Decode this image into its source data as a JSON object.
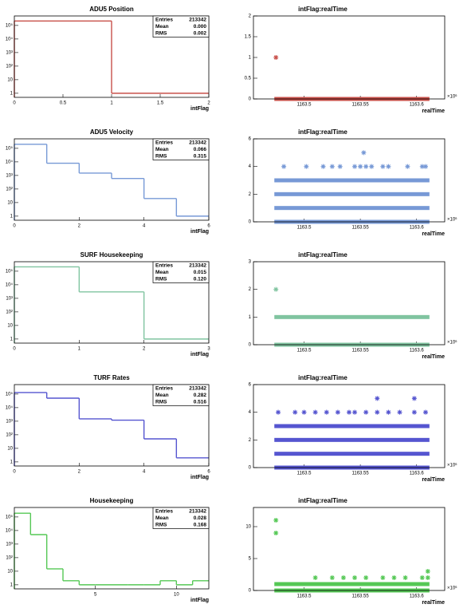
{
  "chart_data": [
    {
      "type": "histogram",
      "title": "ADU5 Position",
      "xlabel": "intFlag",
      "color": "#c8504a",
      "log_y": true,
      "bins": [
        0,
        1,
        2
      ],
      "values": [
        213341,
        1
      ],
      "xlim": [
        0,
        2
      ],
      "xticks": [
        0,
        0.5,
        1,
        1.5,
        2
      ],
      "ylim": [
        0.5,
        500000
      ],
      "yticks": [
        1,
        10,
        {
          "value": 100,
          "label": "10²"
        },
        {
          "value": 1000,
          "label": "10³"
        },
        {
          "value": 10000,
          "label": "10⁴"
        },
        {
          "value": 100000,
          "label": "10⁵"
        }
      ],
      "stats": [
        {
          "name": "Entries",
          "value": "213342"
        },
        {
          "name": "Mean",
          "value": "0.000"
        },
        {
          "name": "RMS",
          "value": "0.002"
        }
      ]
    },
    {
      "type": "scatter",
      "title": "intFlag:realTime",
      "xlabel": "realTime",
      "x_exponent": "×10⁶",
      "color": "#c8504a",
      "xlim": [
        1163.455,
        1163.625
      ],
      "xticks": [
        {
          "value": 1163.5,
          "label": "1163.5"
        },
        {
          "value": 1163.55,
          "label": "1163.55"
        },
        {
          "value": 1163.6,
          "label": "1163.6"
        }
      ],
      "ylim": [
        0,
        2
      ],
      "yticks": [
        0,
        0.5,
        1,
        1.5,
        2
      ],
      "bands": [
        {
          "y": 0,
          "x": [
            1163.475,
            1163.61
          ]
        }
      ],
      "x": [
        1163.475
      ],
      "y": [
        1
      ]
    },
    {
      "type": "histogram",
      "title": "ADU5 Velocity",
      "xlabel": "intFlag",
      "color": "#7799d6",
      "log_y": true,
      "bins": [
        0,
        1,
        2,
        3,
        4,
        5,
        6
      ],
      "values": [
        200000,
        8000,
        1500,
        600,
        20,
        1
      ],
      "xlim": [
        0,
        6
      ],
      "xticks": [
        0,
        2,
        4,
        6
      ],
      "ylim": [
        0.5,
        500000
      ],
      "yticks": [
        1,
        10,
        {
          "value": 100,
          "label": "10²"
        },
        {
          "value": 1000,
          "label": "10³"
        },
        {
          "value": 10000,
          "label": "10⁴"
        },
        {
          "value": 100000,
          "label": "10⁵"
        }
      ],
      "stats": [
        {
          "name": "Entries",
          "value": "213342"
        },
        {
          "name": "Mean",
          "value": "0.066"
        },
        {
          "name": "RMS",
          "value": "0.315"
        }
      ]
    },
    {
      "type": "scatter",
      "title": "intFlag:realTime",
      "xlabel": "realTime",
      "x_exponent": "×10⁶",
      "color": "#7799d6",
      "xlim": [
        1163.455,
        1163.625
      ],
      "xticks": [
        {
          "value": 1163.5,
          "label": "1163.5"
        },
        {
          "value": 1163.55,
          "label": "1163.55"
        },
        {
          "value": 1163.6,
          "label": "1163.6"
        }
      ],
      "ylim": [
        0,
        6
      ],
      "yticks": [
        0,
        2,
        4,
        6
      ],
      "bands": [
        {
          "y": 0,
          "x": [
            1163.475,
            1163.61
          ]
        },
        {
          "y": 1,
          "x": [
            1163.475,
            1163.61
          ]
        },
        {
          "y": 2,
          "x": [
            1163.475,
            1163.61
          ]
        },
        {
          "y": 3,
          "x": [
            1163.475,
            1163.61
          ]
        }
      ],
      "x": [
        1163.482,
        1163.502,
        1163.517,
        1163.525,
        1163.532,
        1163.545,
        1163.55,
        1163.555,
        1163.56,
        1163.57,
        1163.575,
        1163.592,
        1163.605,
        1163.608,
        1163.553
      ],
      "y": [
        4,
        4,
        4,
        4,
        4,
        4,
        4,
        4,
        4,
        4,
        4,
        4,
        4,
        4,
        5
      ]
    },
    {
      "type": "histogram",
      "title": "SURF Housekeeping",
      "xlabel": "intFlag",
      "color": "#80c4a0",
      "log_y": true,
      "bins": [
        0,
        1,
        2,
        3
      ],
      "values": [
        210000,
        3000,
        1
      ],
      "xlim": [
        0,
        3
      ],
      "xticks": [
        0,
        1,
        2,
        3
      ],
      "ylim": [
        0.5,
        500000
      ],
      "yticks": [
        1,
        10,
        {
          "value": 100,
          "label": "10²"
        },
        {
          "value": 1000,
          "label": "10³"
        },
        {
          "value": 10000,
          "label": "10⁴"
        },
        {
          "value": 100000,
          "label": "10⁵"
        }
      ],
      "stats": [
        {
          "name": "Entries",
          "value": "213342"
        },
        {
          "name": "Mean",
          "value": "0.015"
        },
        {
          "name": "RMS",
          "value": "0.120"
        }
      ]
    },
    {
      "type": "scatter",
      "title": "intFlag:realTime",
      "xlabel": "realTime",
      "x_exponent": "×10⁶",
      "color": "#80c4a0",
      "xlim": [
        1163.455,
        1163.625
      ],
      "xticks": [
        {
          "value": 1163.5,
          "label": "1163.5"
        },
        {
          "value": 1163.55,
          "label": "1163.55"
        },
        {
          "value": 1163.6,
          "label": "1163.6"
        }
      ],
      "ylim": [
        0,
        3
      ],
      "yticks": [
        0,
        1,
        2,
        3
      ],
      "bands": [
        {
          "y": 0,
          "x": [
            1163.475,
            1163.61
          ]
        },
        {
          "y": 1,
          "x": [
            1163.475,
            1163.61
          ]
        }
      ],
      "x": [
        1163.475
      ],
      "y": [
        2
      ]
    },
    {
      "type": "histogram",
      "title": "TURF Rates",
      "xlabel": "intFlag",
      "color": "#5555d0",
      "log_y": true,
      "bins": [
        0,
        1,
        2,
        3,
        4,
        5,
        6
      ],
      "values": [
        130000,
        50000,
        1500,
        1200,
        50,
        2
      ],
      "xlim": [
        0,
        6
      ],
      "xticks": [
        0,
        2,
        4,
        6
      ],
      "ylim": [
        0.5,
        500000
      ],
      "yticks": [
        1,
        10,
        {
          "value": 100,
          "label": "10²"
        },
        {
          "value": 1000,
          "label": "10³"
        },
        {
          "value": 10000,
          "label": "10⁴"
        },
        {
          "value": 100000,
          "label": "10⁵"
        }
      ],
      "stats": [
        {
          "name": "Entries",
          "value": "213342"
        },
        {
          "name": "Mean",
          "value": "0.282"
        },
        {
          "name": "RMS",
          "value": "0.516"
        }
      ]
    },
    {
      "type": "scatter",
      "title": "intFlag:realTime",
      "xlabel": "realTime",
      "x_exponent": "×10⁶",
      "color": "#5555d0",
      "xlim": [
        1163.455,
        1163.625
      ],
      "xticks": [
        {
          "value": 1163.5,
          "label": "1163.5"
        },
        {
          "value": 1163.55,
          "label": "1163.55"
        },
        {
          "value": 1163.6,
          "label": "1163.6"
        }
      ],
      "ylim": [
        0,
        6
      ],
      "yticks": [
        0,
        2,
        4,
        6
      ],
      "bands": [
        {
          "y": 0,
          "x": [
            1163.475,
            1163.61
          ]
        },
        {
          "y": 1,
          "x": [
            1163.475,
            1163.61
          ]
        },
        {
          "y": 2,
          "x": [
            1163.475,
            1163.61
          ]
        },
        {
          "y": 3,
          "x": [
            1163.475,
            1163.61
          ]
        }
      ],
      "x": [
        1163.477,
        1163.492,
        1163.5,
        1163.51,
        1163.52,
        1163.53,
        1163.54,
        1163.545,
        1163.555,
        1163.565,
        1163.575,
        1163.585,
        1163.598,
        1163.608,
        1163.565,
        1163.598
      ],
      "y": [
        4,
        4,
        4,
        4,
        4,
        4,
        4,
        4,
        4,
        4,
        4,
        4,
        4,
        4,
        5,
        5
      ]
    },
    {
      "type": "histogram",
      "title": "Housekeeping",
      "xlabel": "intFlag",
      "color": "#55c855",
      "log_y": true,
      "bins": [
        0,
        1,
        2,
        3,
        4,
        5,
        6,
        7,
        8,
        9,
        10,
        11,
        12
      ],
      "values": [
        190000,
        5000,
        15,
        2,
        1,
        1,
        1,
        1,
        1,
        2,
        1,
        2
      ],
      "xlim": [
        0,
        12
      ],
      "xticks": [
        5,
        10
      ],
      "ylim": [
        0.5,
        500000
      ],
      "yticks": [
        1,
        10,
        {
          "value": 100,
          "label": "10²"
        },
        {
          "value": 1000,
          "label": "10³"
        },
        {
          "value": 10000,
          "label": "10⁴"
        },
        {
          "value": 100000,
          "label": "10⁵"
        }
      ],
      "stats": [
        {
          "name": "Entries",
          "value": "213342"
        },
        {
          "name": "Mean",
          "value": "0.028"
        },
        {
          "name": "RMS",
          "value": "0.168"
        }
      ]
    },
    {
      "type": "scatter",
      "title": "intFlag:realTime",
      "xlabel": "realTime",
      "x_exponent": "×10⁶",
      "color": "#55c855",
      "xlim": [
        1163.455,
        1163.625
      ],
      "xticks": [
        {
          "value": 1163.5,
          "label": "1163.5"
        },
        {
          "value": 1163.55,
          "label": "1163.55"
        },
        {
          "value": 1163.6,
          "label": "1163.6"
        }
      ],
      "ylim": [
        0,
        13
      ],
      "yticks": [
        0,
        5,
        10
      ],
      "bands": [
        {
          "y": 0,
          "x": [
            1163.475,
            1163.61
          ]
        },
        {
          "y": 1,
          "x": [
            1163.475,
            1163.61
          ]
        }
      ],
      "x": [
        1163.475,
        1163.475,
        1163.51,
        1163.525,
        1163.535,
        1163.545,
        1163.555,
        1163.57,
        1163.58,
        1163.59,
        1163.605,
        1163.61,
        1163.61
      ],
      "y": [
        11,
        9,
        2,
        2,
        2,
        2,
        2,
        2,
        2,
        2,
        2,
        2,
        3
      ]
    }
  ]
}
